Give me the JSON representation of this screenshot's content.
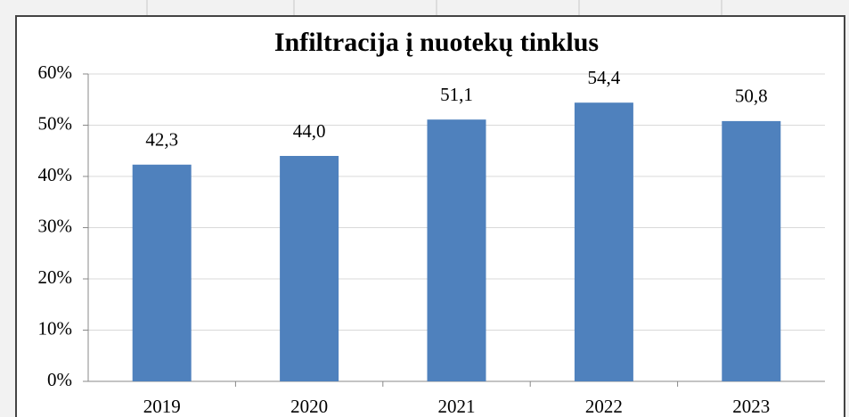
{
  "chart_data": {
    "type": "bar",
    "title": "Infiltracija į nuotekų tinklus",
    "categories": [
      "2019",
      "2020",
      "2021",
      "2022",
      "2023"
    ],
    "values": [
      42.3,
      44.0,
      51.1,
      54.4,
      50.8
    ],
    "value_labels": [
      "42,3",
      "44,0",
      "51,1",
      "54,4",
      "50,8"
    ],
    "color": "#4f81bd",
    "ylim": [
      0,
      60
    ],
    "yticks": [
      {
        "value": 0,
        "label": "0%"
      },
      {
        "value": 10,
        "label": "10%"
      },
      {
        "value": 20,
        "label": "20%"
      },
      {
        "value": 30,
        "label": "30%"
      },
      {
        "value": 40,
        "label": "40%"
      },
      {
        "value": 50,
        "label": "50%"
      },
      {
        "value": 60,
        "label": "60%"
      }
    ],
    "grid": true
  }
}
